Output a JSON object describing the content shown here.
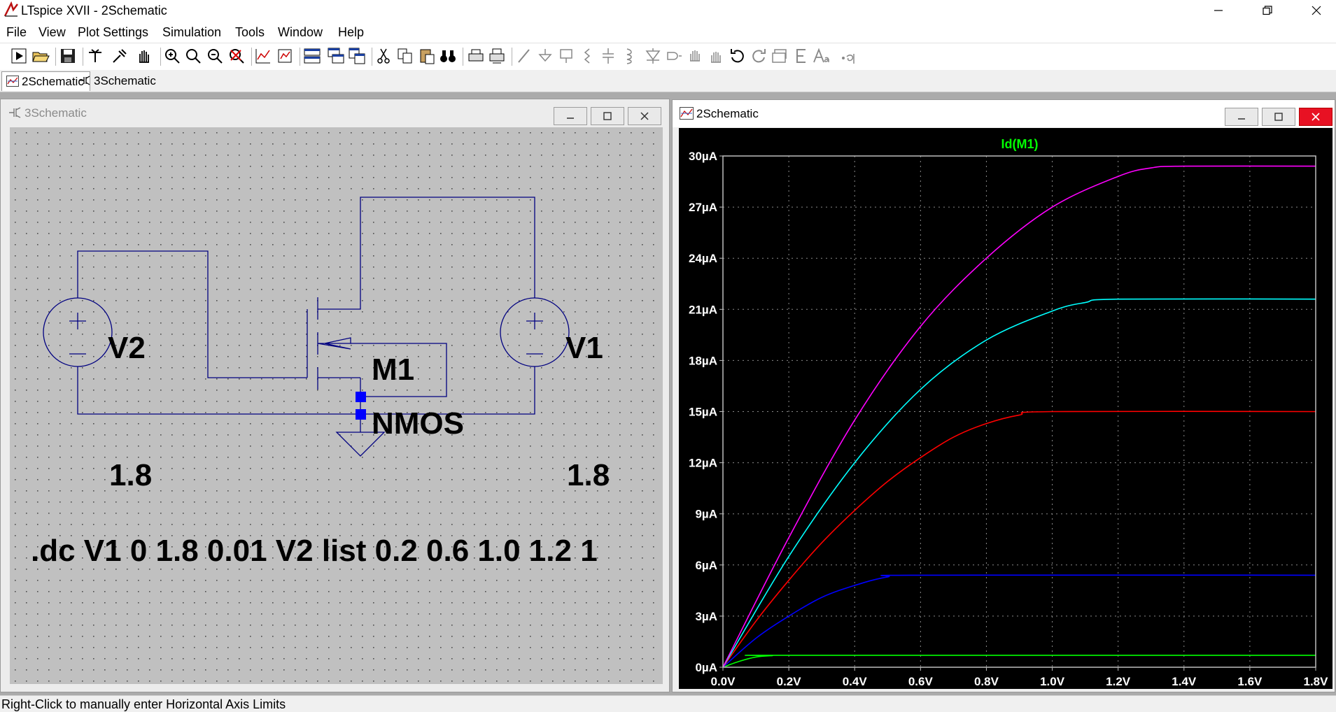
{
  "window": {
    "title": "LTspice XVII - 2Schematic"
  },
  "menu": [
    "File",
    "View",
    "Plot Settings",
    "Simulation",
    "Tools",
    "Window",
    "Help"
  ],
  "tabs": [
    {
      "label": "2Schematic",
      "icon": "waveform-icon",
      "active": true
    },
    {
      "label": "3Schematic",
      "icon": "schematic-icon",
      "active": false
    }
  ],
  "schematic_window": {
    "title": "3Schematic",
    "components": {
      "v2": {
        "name": "V2",
        "value": "1.8"
      },
      "v1": {
        "name": "V1",
        "value": "1.8"
      },
      "m1": {
        "name": "M1",
        "model": "NMOS"
      }
    },
    "directive": ".dc V1 0 1.8 0.01 V2 list 0.2 0.6 1.0 1.2 1"
  },
  "plot_window": {
    "title": "2Schematic",
    "chart_data": {
      "type": "line",
      "title": "Id(M1)",
      "xlim": [
        0,
        1.8
      ],
      "ylim": [
        0,
        30
      ],
      "x_ticks": [
        "0.0V",
        "0.2V",
        "0.4V",
        "0.6V",
        "0.8V",
        "1.0V",
        "1.2V",
        "1.4V",
        "1.6V",
        "1.8V"
      ],
      "y_ticks": [
        "0µA",
        "3µA",
        "6µA",
        "9µA",
        "12µA",
        "15µA",
        "18µA",
        "21µA",
        "24µA",
        "27µA",
        "30µA"
      ],
      "grid": true,
      "series": [
        {
          "color": "#00ff00",
          "x": [
            0,
            0.05,
            0.1,
            0.15,
            0.2,
            1.8
          ],
          "y": [
            0,
            0.35,
            0.6,
            0.68,
            0.7,
            0.7
          ]
        },
        {
          "color": "#0000ff",
          "x": [
            0,
            0.1,
            0.2,
            0.3,
            0.4,
            0.5,
            0.6,
            1.8
          ],
          "y": [
            0,
            1.7,
            3.0,
            4.1,
            4.8,
            5.3,
            5.4,
            5.4
          ]
        },
        {
          "color": "#ff0000",
          "x": [
            0,
            0.1,
            0.2,
            0.3,
            0.4,
            0.5,
            0.6,
            0.7,
            0.8,
            0.9,
            1.0,
            1.8
          ],
          "y": [
            0,
            2.7,
            5.1,
            7.3,
            9.2,
            10.9,
            12.3,
            13.5,
            14.3,
            14.8,
            15.0,
            15.0
          ]
        },
        {
          "color": "#00ffff",
          "x": [
            0,
            0.2,
            0.4,
            0.6,
            0.8,
            1.0,
            1.1,
            1.2,
            1.8
          ],
          "y": [
            0,
            6.5,
            12.0,
            16.3,
            19.2,
            20.9,
            21.4,
            21.6,
            21.6
          ]
        },
        {
          "color": "#ff00ff",
          "x": [
            0,
            0.2,
            0.4,
            0.6,
            0.8,
            1.0,
            1.2,
            1.3,
            1.4,
            1.8
          ],
          "y": [
            0,
            7.6,
            14.5,
            20.0,
            24.0,
            27.0,
            28.8,
            29.3,
            29.4,
            29.4
          ]
        }
      ]
    }
  },
  "status": {
    "text": "Right-Click to manually enter Horizontal Axis Limits"
  }
}
